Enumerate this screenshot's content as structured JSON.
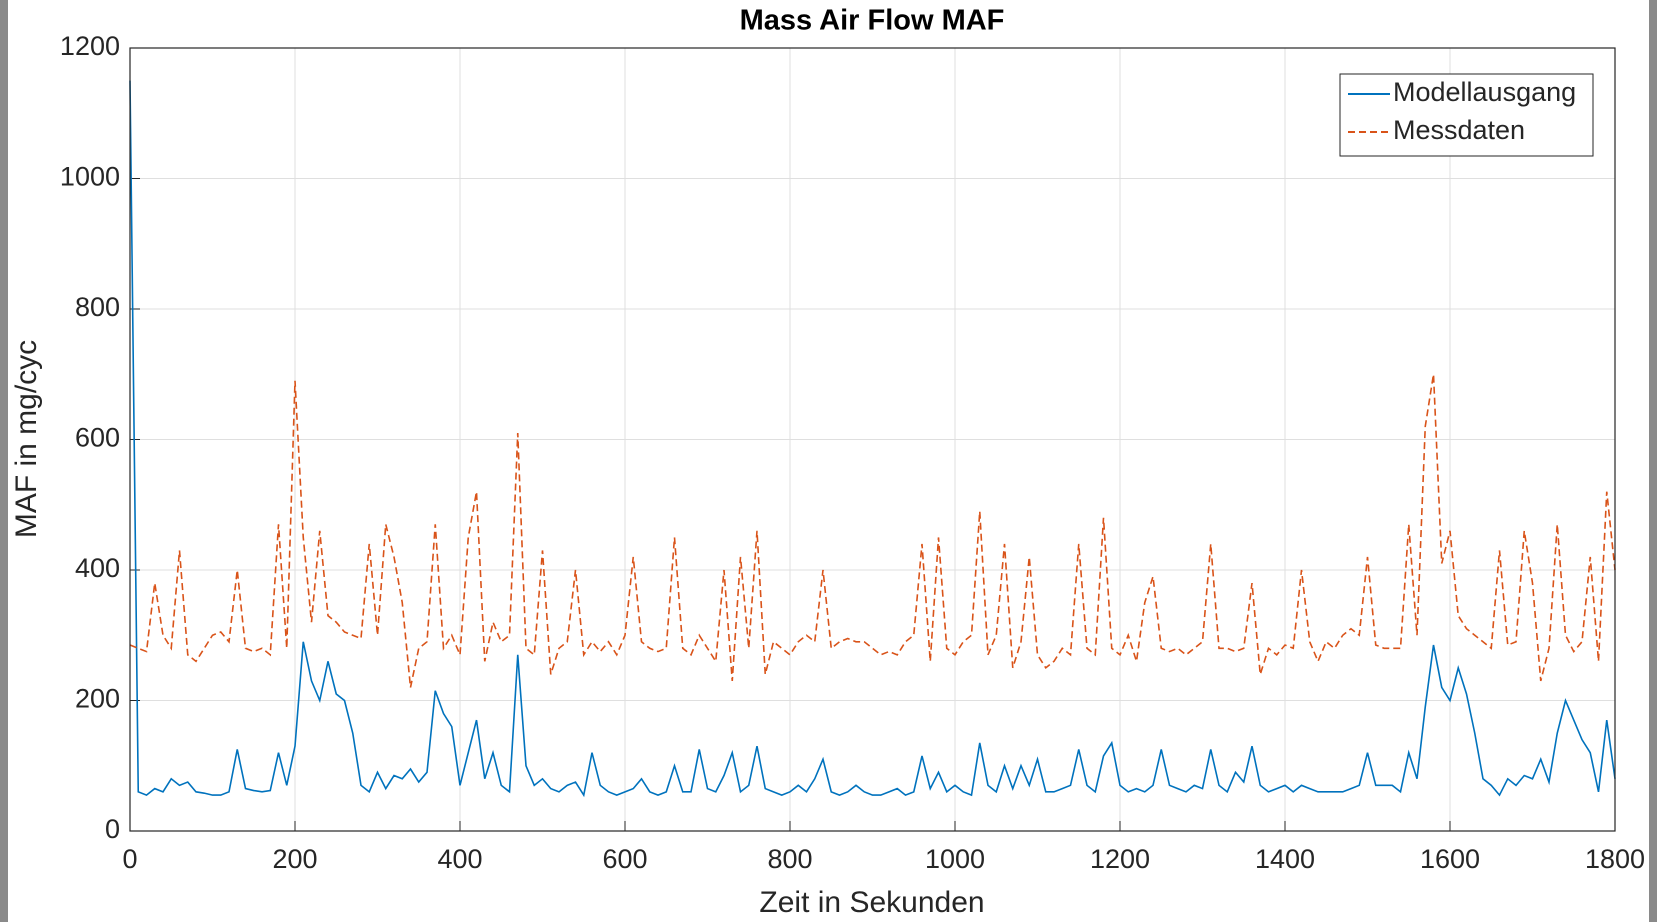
{
  "chart_data": {
    "type": "line",
    "title": "Mass Air Flow MAF",
    "x_label": "Zeit in Sekunden",
    "y_label": "MAF in mg/cyc",
    "x": [
      0,
      10,
      20,
      30,
      40,
      50,
      60,
      70,
      80,
      90,
      100,
      110,
      120,
      130,
      140,
      150,
      160,
      170,
      180,
      190,
      200,
      210,
      220,
      230,
      240,
      250,
      260,
      270,
      280,
      290,
      300,
      310,
      320,
      330,
      340,
      350,
      360,
      370,
      380,
      390,
      400,
      410,
      420,
      430,
      440,
      450,
      460,
      470,
      480,
      490,
      500,
      510,
      520,
      530,
      540,
      550,
      560,
      570,
      580,
      590,
      600,
      610,
      620,
      630,
      640,
      650,
      660,
      670,
      680,
      690,
      700,
      710,
      720,
      730,
      740,
      750,
      760,
      770,
      780,
      790,
      800,
      810,
      820,
      830,
      840,
      850,
      860,
      870,
      880,
      890,
      900,
      910,
      920,
      930,
      940,
      950,
      960,
      970,
      980,
      990,
      1000,
      1010,
      1020,
      1030,
      1040,
      1050,
      1060,
      1070,
      1080,
      1090,
      1100,
      1110,
      1120,
      1130,
      1140,
      1150,
      1160,
      1170,
      1180,
      1190,
      1200,
      1210,
      1220,
      1230,
      1240,
      1250,
      1260,
      1270,
      1280,
      1290,
      1300,
      1310,
      1320,
      1330,
      1340,
      1350,
      1360,
      1370,
      1380,
      1390,
      1400,
      1410,
      1420,
      1430,
      1440,
      1450,
      1460,
      1470,
      1480,
      1490,
      1500,
      1510,
      1520,
      1530,
      1540,
      1550,
      1560,
      1570,
      1580,
      1590,
      1600,
      1610,
      1620,
      1630,
      1640,
      1650,
      1660,
      1670,
      1680,
      1690,
      1700,
      1710,
      1720,
      1730,
      1740,
      1750,
      1760,
      1770,
      1780,
      1790,
      1800
    ],
    "series": [
      {
        "name": "Modellausgang",
        "color": "#0072bd",
        "linestyle": "solid",
        "values": [
          1150,
          60,
          55,
          65,
          60,
          80,
          70,
          75,
          60,
          58,
          55,
          55,
          60,
          125,
          65,
          62,
          60,
          62,
          120,
          70,
          130,
          290,
          230,
          200,
          260,
          210,
          200,
          150,
          70,
          60,
          90,
          65,
          85,
          80,
          95,
          75,
          90,
          215,
          180,
          160,
          70,
          120,
          170,
          80,
          120,
          70,
          60,
          270,
          100,
          70,
          80,
          65,
          60,
          70,
          75,
          55,
          120,
          70,
          60,
          55,
          60,
          65,
          80,
          60,
          55,
          60,
          100,
          60,
          60,
          125,
          65,
          60,
          85,
          120,
          60,
          70,
          130,
          65,
          60,
          55,
          60,
          70,
          60,
          80,
          110,
          60,
          55,
          60,
          70,
          60,
          55,
          55,
          60,
          65,
          55,
          60,
          115,
          65,
          90,
          60,
          70,
          60,
          55,
          135,
          70,
          60,
          100,
          65,
          100,
          70,
          110,
          60,
          60,
          65,
          70,
          125,
          70,
          60,
          115,
          135,
          70,
          60,
          65,
          60,
          70,
          125,
          70,
          65,
          60,
          70,
          65,
          125,
          70,
          60,
          90,
          75,
          130,
          70,
          60,
          65,
          70,
          60,
          70,
          65,
          60,
          60,
          60,
          60,
          65,
          70,
          120,
          70,
          70,
          70,
          60,
          120,
          80,
          190,
          285,
          220,
          200,
          250,
          210,
          150,
          80,
          70,
          55,
          80,
          70,
          85,
          80,
          110,
          75,
          150,
          200,
          170,
          140,
          120,
          60,
          170,
          80
        ]
      },
      {
        "name": "Messdaten",
        "color": "#d95319",
        "linestyle": "dashed",
        "values": [
          285,
          280,
          275,
          380,
          300,
          280,
          430,
          270,
          260,
          280,
          300,
          305,
          290,
          400,
          280,
          275,
          280,
          270,
          470,
          280,
          690,
          450,
          320,
          460,
          330,
          320,
          305,
          300,
          295,
          440,
          300,
          470,
          420,
          350,
          220,
          280,
          290,
          470,
          280,
          300,
          270,
          450,
          520,
          260,
          320,
          290,
          300,
          610,
          280,
          270,
          430,
          240,
          280,
          290,
          400,
          270,
          290,
          275,
          290,
          270,
          300,
          420,
          290,
          280,
          275,
          280,
          450,
          280,
          270,
          300,
          280,
          260,
          400,
          230,
          420,
          280,
          460,
          240,
          290,
          280,
          270,
          290,
          300,
          290,
          400,
          280,
          290,
          295,
          290,
          290,
          280,
          270,
          275,
          270,
          290,
          300,
          440,
          260,
          450,
          280,
          270,
          290,
          300,
          490,
          270,
          300,
          440,
          250,
          290,
          420,
          270,
          250,
          260,
          280,
          270,
          440,
          280,
          270,
          480,
          280,
          270,
          300,
          260,
          350,
          390,
          280,
          275,
          280,
          270,
          280,
          290,
          440,
          280,
          280,
          275,
          280,
          380,
          240,
          280,
          270,
          285,
          280,
          400,
          290,
          260,
          290,
          280,
          300,
          310,
          300,
          420,
          285,
          280,
          280,
          280,
          470,
          300,
          620,
          700,
          410,
          460,
          330,
          310,
          300,
          290,
          280,
          430,
          285,
          290,
          460,
          380,
          230,
          280,
          470,
          300,
          275,
          290,
          420,
          260,
          520,
          400
        ]
      }
    ],
    "xlim": [
      0,
      1800
    ],
    "xticks": [
      0,
      200,
      400,
      600,
      800,
      1000,
      1200,
      1400,
      1600,
      1800
    ],
    "ylim": [
      0,
      1200
    ],
    "yticks": [
      0,
      200,
      400,
      600,
      800,
      1000,
      1200
    ],
    "grid": true,
    "legend": "northeast"
  }
}
